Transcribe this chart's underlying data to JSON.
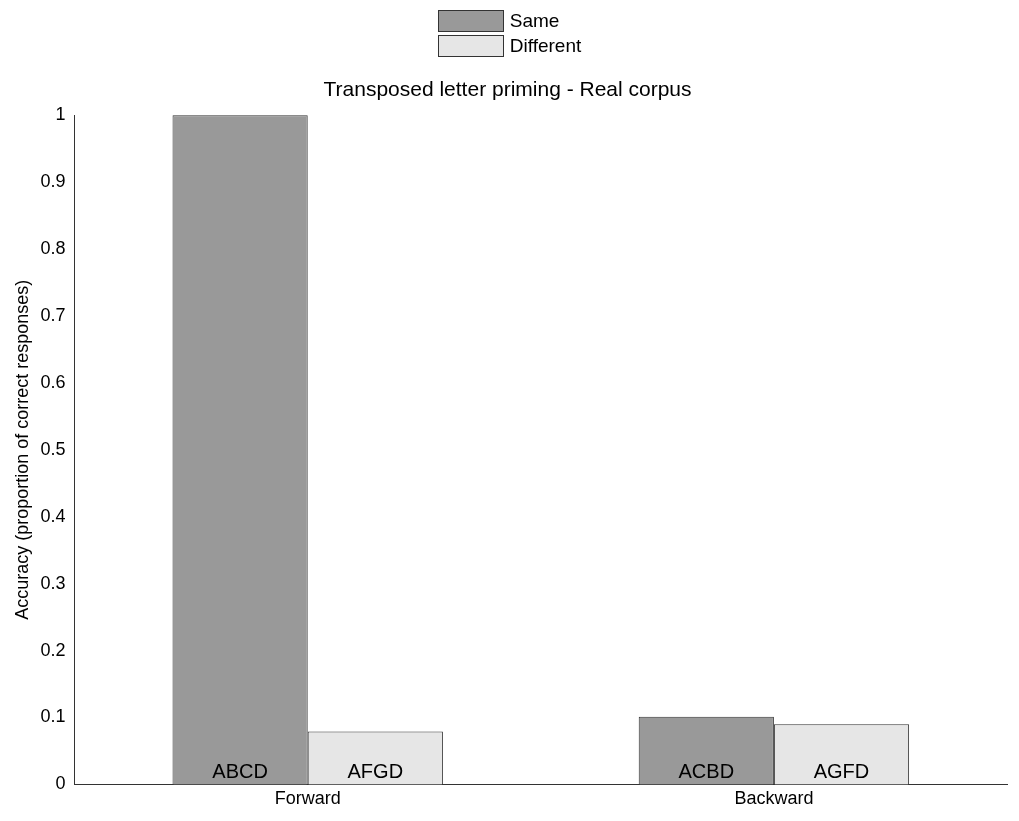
{
  "chart_data": {
    "type": "bar",
    "title": "Transposed letter priming - Real corpus",
    "ylabel": "Accuracy (proportion of correct responses)",
    "categories": [
      "Forward",
      "Backward"
    ],
    "series": [
      {
        "name": "Same",
        "color": "#999999",
        "values": [
          1,
          0.101
        ],
        "value_labels": [
          "ABCD",
          "ACBD"
        ]
      },
      {
        "name": "Different",
        "color": "#e6e6e6",
        "values": [
          0.079,
          0.09
        ],
        "value_labels": [
          "AFGD",
          "AGFD"
        ]
      }
    ],
    "ylim": [
      0,
      1
    ],
    "yticks": [
      0,
      0.1,
      0.2,
      0.3,
      0.4,
      0.5,
      0.6,
      0.7,
      0.8,
      0.9,
      1
    ],
    "grid": false,
    "legend": "top"
  }
}
